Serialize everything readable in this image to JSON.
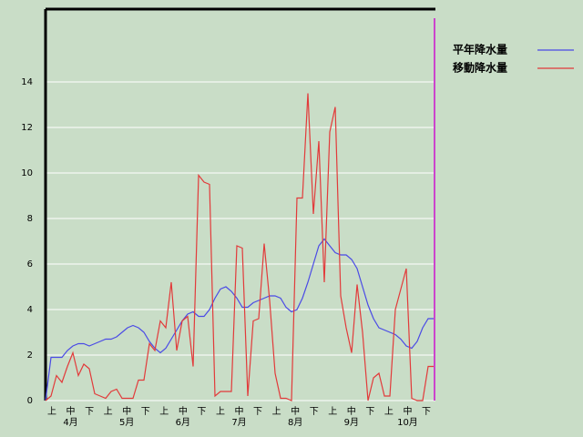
{
  "chart_data": {
    "type": "line",
    "x_tick_labels": [
      "上",
      "中",
      "下",
      "上",
      "中",
      "下",
      "上",
      "中",
      "下",
      "上",
      "中",
      "下",
      "上",
      "中",
      "下",
      "上",
      "中",
      "下",
      "上",
      "中",
      "下"
    ],
    "month_labels": [
      "4月",
      "5月",
      "6月",
      "7月",
      "8月",
      "9月",
      "10月"
    ],
    "series": [
      {
        "name": "平年降水量",
        "color": "#4a4ae6",
        "values": [
          0,
          1.9,
          1.9,
          1.9,
          2.2,
          2.4,
          2.5,
          2.5,
          2.4,
          2.5,
          2.6,
          2.7,
          2.7,
          2.8,
          3.0,
          3.2,
          3.3,
          3.2,
          3.0,
          2.6,
          2.3,
          2.1,
          2.3,
          2.7,
          3.1,
          3.5,
          3.8,
          3.9,
          3.7,
          3.7,
          4.0,
          4.5,
          4.9,
          5.0,
          4.8,
          4.5,
          4.1,
          4.1,
          4.3,
          4.4,
          4.5,
          4.6,
          4.6,
          4.5,
          4.1,
          3.9,
          4.0,
          4.5,
          5.2,
          6.0,
          6.8,
          7.1,
          6.8,
          6.5,
          6.4,
          6.4,
          6.2,
          5.8,
          5.0,
          4.2,
          3.6,
          3.2,
          3.1,
          3.0,
          2.9,
          2.7,
          2.4,
          2.3,
          2.6,
          3.2,
          3.6,
          3.6
        ]
      },
      {
        "name": "移動降水量",
        "color": "#e23a3a",
        "values": [
          0,
          0.2,
          1.1,
          0.8,
          1.5,
          2.1,
          1.1,
          1.6,
          1.4,
          0.3,
          0.2,
          0.1,
          0.4,
          0.5,
          0.1,
          0.1,
          0.1,
          0.9,
          0.9,
          2.5,
          2.2,
          3.5,
          3.2,
          5.2,
          2.2,
          3.5,
          3.7,
          1.5,
          9.9,
          9.6,
          9.5,
          0.2,
          0.4,
          0.4,
          0.4,
          6.8,
          6.7,
          0.2,
          3.5,
          3.6,
          6.9,
          4.4,
          1.2,
          0.1,
          0.1,
          0,
          8.9,
          8.9,
          13.5,
          8.2,
          11.4,
          5.2,
          11.8,
          12.9,
          4.6,
          3.2,
          2.1,
          5.1,
          3.0,
          0,
          1.0,
          1.2,
          0.2,
          0.2,
          4.0,
          4.9,
          5.8,
          0.1,
          0,
          0,
          1.5,
          1.5
        ]
      }
    ],
    "ylim": [
      0,
      17.2
    ],
    "yticks": [
      0,
      2,
      4,
      6,
      8,
      10,
      12,
      14
    ],
    "grid": true
  }
}
